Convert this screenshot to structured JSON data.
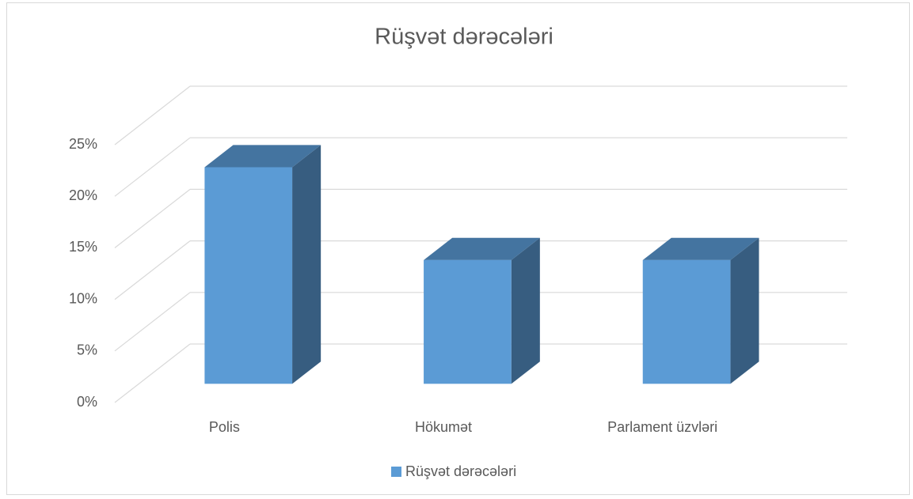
{
  "chart_data": {
    "type": "bar3d",
    "title": "Rüşvət dərəcələri",
    "categories": [
      "Polis",
      "Hökumət",
      "Parlament üzvləri"
    ],
    "series": [
      {
        "name": "Rüşvət dərəcələri",
        "color": "#5b9bd5",
        "values": [
          21,
          12,
          12
        ]
      }
    ],
    "ylim": [
      0,
      25
    ],
    "yticks": [
      {
        "value": 0,
        "label": "0%"
      },
      {
        "value": 5,
        "label": "5%"
      },
      {
        "value": 10,
        "label": "10%"
      },
      {
        "value": 15,
        "label": "15%"
      },
      {
        "value": 20,
        "label": "20%"
      },
      {
        "value": 25,
        "label": "25%"
      }
    ],
    "grid": true,
    "legend": "bottom"
  }
}
